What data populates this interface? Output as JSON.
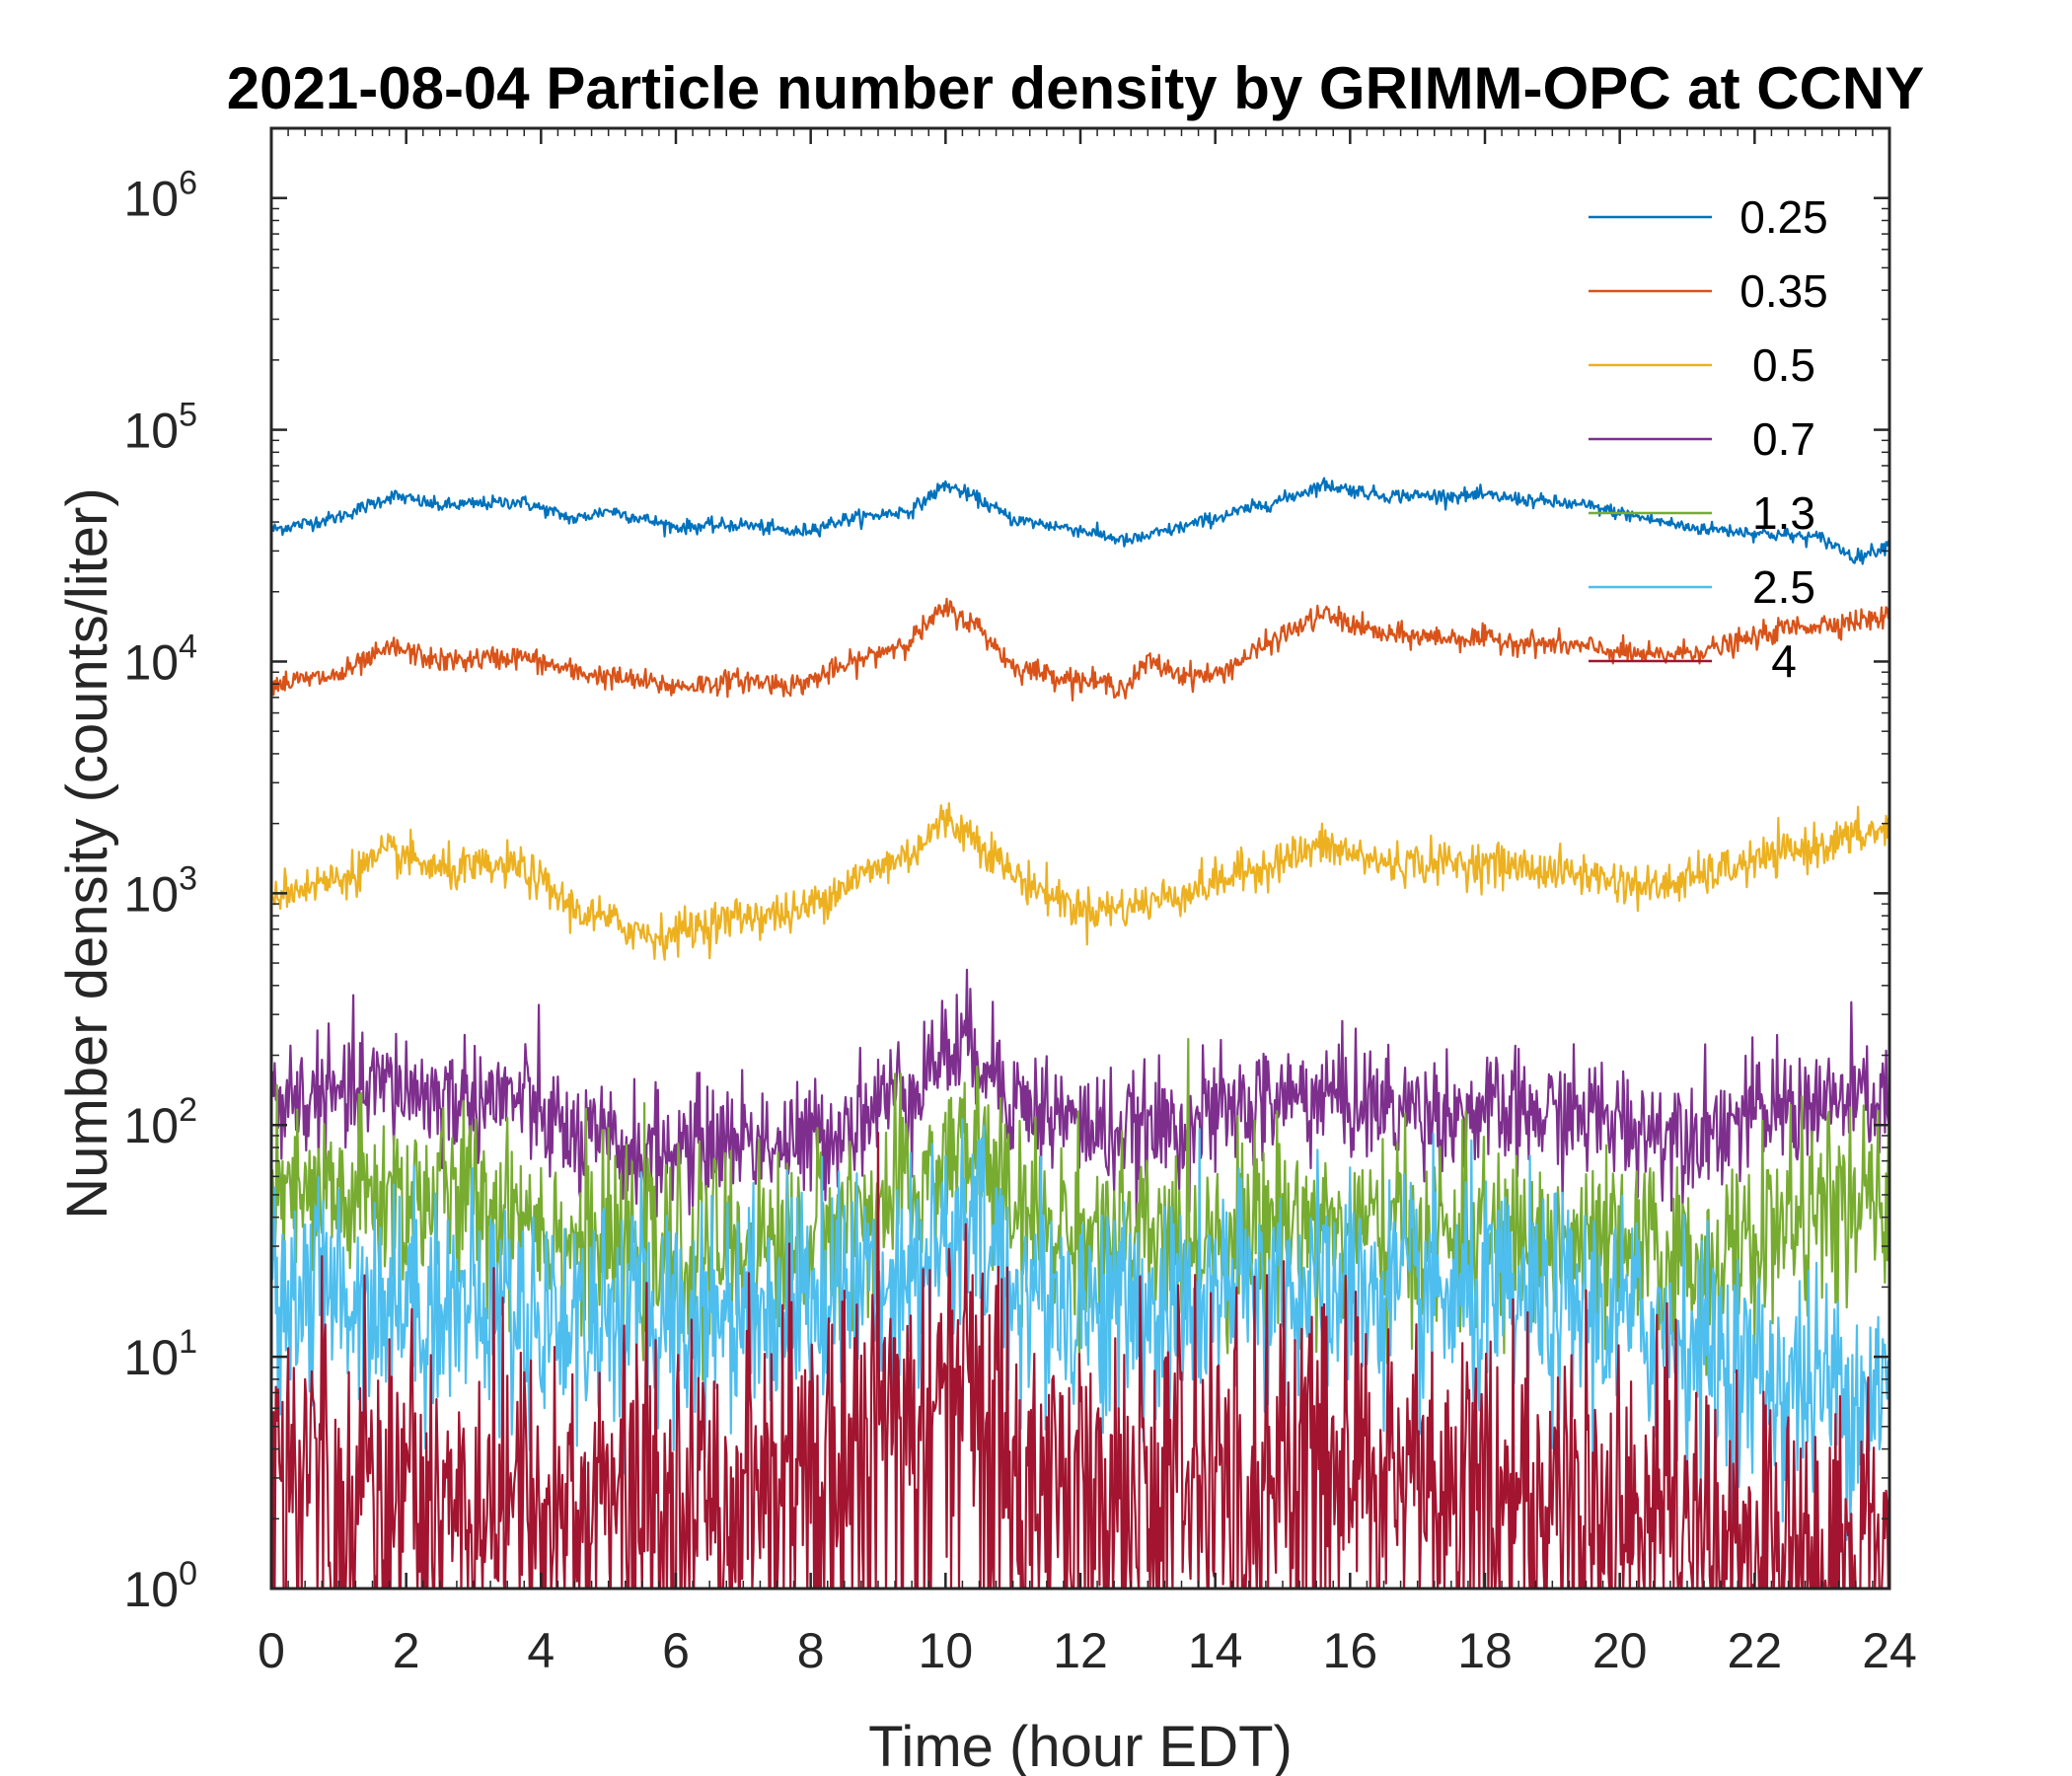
{
  "chart_data": {
    "type": "line",
    "title": "2021-08-04 Particle number density by GRIMM-OPC at CCNY",
    "xlabel": "Time (hour EDT)",
    "ylabel": "Number density (counts/liter)",
    "xlim": [
      0,
      24
    ],
    "ylim": [
      1,
      2000000
    ],
    "yscale": "log",
    "x_ticks": [
      0,
      2,
      4,
      6,
      8,
      10,
      12,
      14,
      16,
      18,
      20,
      22,
      24
    ],
    "y_ticks": [
      {
        "value": 1,
        "base": "10",
        "exp": "0"
      },
      {
        "value": 10,
        "base": "10",
        "exp": "1"
      },
      {
        "value": 100,
        "base": "10",
        "exp": "2"
      },
      {
        "value": 1000,
        "base": "10",
        "exp": "3"
      },
      {
        "value": 10000,
        "base": "10",
        "exp": "4"
      },
      {
        "value": 100000,
        "base": "10",
        "exp": "5"
      },
      {
        "value": 1000000,
        "base": "10",
        "exp": "6"
      }
    ],
    "legend_position": "top-right",
    "series": [
      {
        "name": "0.25",
        "color": "#0072BD",
        "noise": 0.015,
        "spikes": false,
        "trend": [
          [
            0,
            37000
          ],
          [
            1,
            42000
          ],
          [
            1.8,
            52000
          ],
          [
            2.5,
            47000
          ],
          [
            3.7,
            49000
          ],
          [
            4.5,
            41000
          ],
          [
            5,
            45000
          ],
          [
            6,
            38000
          ],
          [
            7,
            39000
          ],
          [
            7.8,
            36000
          ],
          [
            8.5,
            41000
          ],
          [
            9.5,
            45000
          ],
          [
            10,
            58000
          ],
          [
            10.5,
            50000
          ],
          [
            11,
            41000
          ],
          [
            12,
            37000
          ],
          [
            12.7,
            33000
          ],
          [
            13.5,
            38000
          ],
          [
            15,
            50000
          ],
          [
            15.6,
            58000
          ],
          [
            16.5,
            52000
          ],
          [
            18,
            52000
          ],
          [
            19.5,
            47000
          ],
          [
            21,
            38000
          ],
          [
            22,
            36000
          ],
          [
            23,
            34000
          ],
          [
            23.5,
            28000
          ],
          [
            24,
            32000
          ]
        ]
      },
      {
        "name": "0.35",
        "color": "#D95319",
        "noise": 0.025,
        "spikes": false,
        "trend": [
          [
            0,
            8000
          ],
          [
            1,
            8700
          ],
          [
            1.8,
            11500
          ],
          [
            2.5,
            10000
          ],
          [
            3.7,
            10500
          ],
          [
            4.5,
            9000
          ],
          [
            6,
            7800
          ],
          [
            7,
            8300
          ],
          [
            7.8,
            7900
          ],
          [
            8.5,
            9500
          ],
          [
            9.5,
            12500
          ],
          [
            10,
            17000
          ],
          [
            10.5,
            14000
          ],
          [
            11,
            9500
          ],
          [
            12,
            8300
          ],
          [
            12.7,
            7800
          ],
          [
            13,
            10000
          ],
          [
            13.5,
            8800
          ],
          [
            14,
            8700
          ],
          [
            15,
            13000
          ],
          [
            15.6,
            16000
          ],
          [
            16.5,
            13000
          ],
          [
            18,
            12500
          ],
          [
            19.5,
            11500
          ],
          [
            20.5,
            10500
          ],
          [
            21.5,
            11500
          ],
          [
            22.5,
            14000
          ],
          [
            24,
            15500
          ]
        ]
      },
      {
        "name": "0.5",
        "color": "#EDB120",
        "noise": 0.045,
        "spikes": false,
        "trend": [
          [
            0,
            1000
          ],
          [
            1,
            1150
          ],
          [
            1.8,
            1500
          ],
          [
            2.5,
            1250
          ],
          [
            3.7,
            1300
          ],
          [
            4.5,
            850
          ],
          [
            5.7,
            650
          ],
          [
            7,
            800
          ],
          [
            7.8,
            820
          ],
          [
            8.5,
            1100
          ],
          [
            9.5,
            1500
          ],
          [
            10,
            2100
          ],
          [
            10.5,
            1700
          ],
          [
            11,
            1200
          ],
          [
            12,
            850
          ],
          [
            12.7,
            870
          ],
          [
            13.5,
            1000
          ],
          [
            15,
            1400
          ],
          [
            15.6,
            1600
          ],
          [
            16.5,
            1350
          ],
          [
            18,
            1350
          ],
          [
            19.5,
            1200
          ],
          [
            20.5,
            1050
          ],
          [
            21.5,
            1250
          ],
          [
            22.5,
            1500
          ],
          [
            24,
            1900
          ]
        ]
      },
      {
        "name": "0.7",
        "color": "#7E2F8E",
        "noise": 0.13,
        "spikes": false,
        "trend": [
          [
            0,
            130
          ],
          [
            1,
            130
          ],
          [
            1.8,
            150
          ],
          [
            2.5,
            130
          ],
          [
            3.7,
            130
          ],
          [
            4.5,
            85
          ],
          [
            5.7,
            75
          ],
          [
            7,
            90
          ],
          [
            7.8,
            80
          ],
          [
            8.5,
            100
          ],
          [
            9.5,
            150
          ],
          [
            10,
            210
          ],
          [
            10.5,
            220
          ],
          [
            11,
            130
          ],
          [
            12,
            100
          ],
          [
            12.7,
            90
          ],
          [
            13.5,
            100
          ],
          [
            15,
            130
          ],
          [
            15.6,
            135
          ],
          [
            16.5,
            120
          ],
          [
            18,
            110
          ],
          [
            19.5,
            110
          ],
          [
            20.5,
            95
          ],
          [
            21.5,
            100
          ],
          [
            22.5,
            120
          ],
          [
            24,
            130
          ]
        ]
      },
      {
        "name": "1.3",
        "color": "#77AC30",
        "noise": 0.2,
        "spikes": false,
        "trend": [
          [
            0,
            45
          ],
          [
            2,
            50
          ],
          [
            3.7,
            45
          ],
          [
            4.5,
            30
          ],
          [
            6,
            28
          ],
          [
            8,
            32
          ],
          [
            9.5,
            50
          ],
          [
            10,
            70
          ],
          [
            10.5,
            80
          ],
          [
            11,
            40
          ],
          [
            12,
            35
          ],
          [
            13,
            30
          ],
          [
            15,
            40
          ],
          [
            16,
            35
          ],
          [
            18,
            32
          ],
          [
            20,
            28
          ],
          [
            21.5,
            25
          ],
          [
            22.5,
            40
          ],
          [
            24,
            45
          ]
        ]
      },
      {
        "name": "2.5",
        "color": "#4DBEEE",
        "noise": 0.25,
        "spikes": false,
        "trend": [
          [
            0,
            20
          ],
          [
            2,
            18
          ],
          [
            4,
            15
          ],
          [
            6,
            15
          ],
          [
            8,
            18
          ],
          [
            9.5,
            25
          ],
          [
            10.5,
            35
          ],
          [
            11,
            20
          ],
          [
            12,
            17
          ],
          [
            13,
            15
          ],
          [
            15,
            20
          ],
          [
            18,
            17
          ],
          [
            20,
            15
          ],
          [
            21,
            12
          ],
          [
            22,
            8
          ],
          [
            24,
            7
          ]
        ]
      },
      {
        "name": "4",
        "color": "#A2142F",
        "noise": 0.35,
        "spikes": true,
        "trend": [
          [
            0,
            4
          ],
          [
            2,
            3
          ],
          [
            4,
            2.5
          ],
          [
            6,
            2.5
          ],
          [
            8,
            4
          ],
          [
            9.5,
            6
          ],
          [
            10.5,
            10
          ],
          [
            11,
            4
          ],
          [
            12,
            3
          ],
          [
            13,
            3
          ],
          [
            15,
            4
          ],
          [
            18,
            3
          ],
          [
            20,
            2.5
          ],
          [
            21,
            2
          ],
          [
            22,
            1.5
          ],
          [
            24,
            1.5
          ]
        ]
      }
    ]
  }
}
